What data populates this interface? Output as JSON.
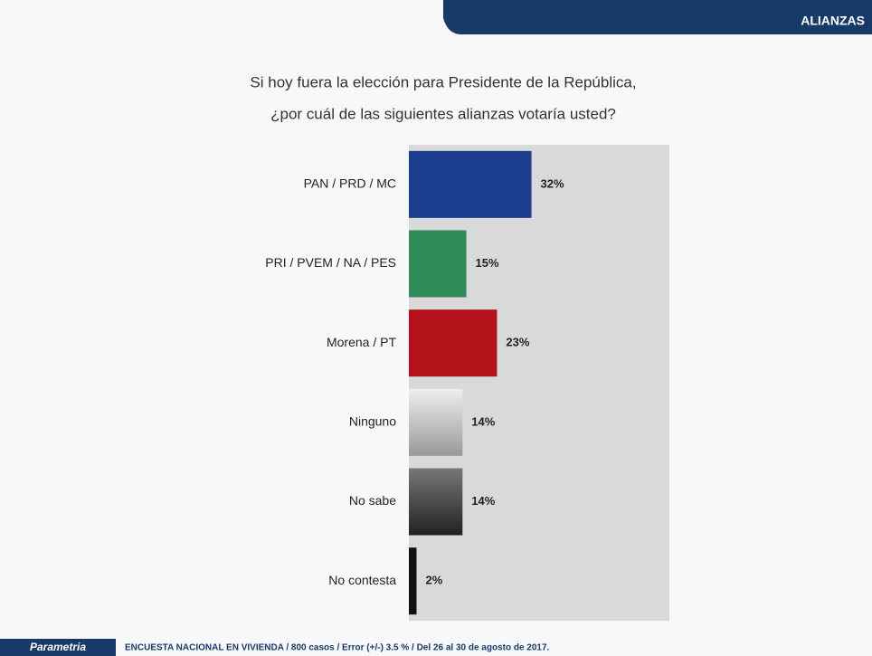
{
  "header": {
    "section": "ALIANZAS"
  },
  "chart_data": {
    "type": "barh",
    "title_lines": [
      "Si hoy fuera la elección para Presidente de la República,",
      "¿por cuál de las siguientes alianzas votaría usted?"
    ],
    "categories": [
      "PAN / PRD / MC",
      "PRI / PVEM / NA / PES",
      "Morena / PT",
      "Ninguno",
      "No sabe",
      "No contesta"
    ],
    "values": [
      32,
      15,
      23,
      14,
      14,
      2
    ],
    "value_labels": [
      "32%",
      "15%",
      "23%",
      "14%",
      "14%",
      "2%"
    ],
    "colors": [
      "#1d3d8f",
      "#2e8b57",
      "#b3121b",
      "#bdbdbd",
      "#555555",
      "#111111"
    ],
    "xlim": [
      0,
      68
    ]
  },
  "footer": {
    "logo": "Parametria",
    "note": "ENCUESTA NACIONAL EN VIVIENDA / 800 casos / Error (+/-) 3.5 % / Del 26 al 30 de agosto de 2017."
  }
}
